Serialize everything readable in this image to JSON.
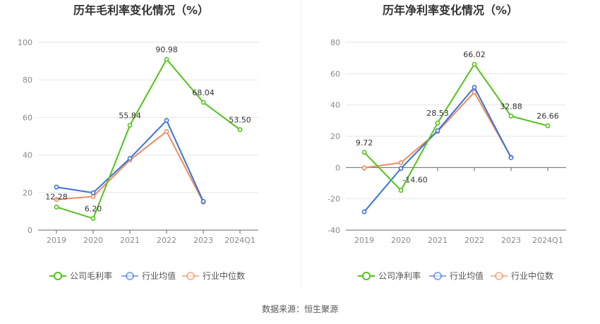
{
  "chart_data": [
    {
      "type": "line",
      "title": "历年毛利率变化情况（%）",
      "categories": [
        "2019",
        "2020",
        "2021",
        "2022",
        "2023",
        "2024Q1"
      ],
      "ylim": [
        0,
        100
      ],
      "yticks": [
        0,
        20,
        40,
        60,
        80,
        100
      ],
      "grid": true,
      "legend_position": "bottom",
      "series": [
        {
          "name": "公司毛利率",
          "color": "#52c41a",
          "values": [
            12.28,
            6.2,
            55.84,
            90.98,
            68.04,
            53.5
          ],
          "labels": [
            "12.28",
            "6.20",
            "55.84",
            "90.98",
            "68.04",
            "53.50"
          ]
        },
        {
          "name": "行业均值",
          "color": "#3b73d9",
          "values": [
            22.9,
            19.9,
            38.2,
            58.4,
            15.3,
            null
          ]
        },
        {
          "name": "行业中位数",
          "color": "#ee8a5f",
          "values": [
            16.3,
            17.9,
            37.3,
            52.5,
            14.9,
            null
          ]
        }
      ]
    },
    {
      "type": "line",
      "title": "历年净利率变化情况（%）",
      "categories": [
        "2019",
        "2020",
        "2021",
        "2022",
        "2023",
        "2024Q1"
      ],
      "ylim": [
        -40,
        80
      ],
      "yticks": [
        -40,
        -20,
        0,
        20,
        40,
        60,
        80
      ],
      "grid": true,
      "legend_position": "bottom",
      "series": [
        {
          "name": "公司净利率",
          "color": "#52c41a",
          "values": [
            9.72,
            -14.6,
            28.53,
            66.02,
            32.88,
            26.66
          ],
          "labels": [
            "9.72",
            "-14.60",
            "28.53",
            "66.02",
            "32.88",
            "26.66"
          ]
        },
        {
          "name": "行业均值",
          "color": "#3b73d9",
          "values": [
            -28.3,
            -0.6,
            23.6,
            51.3,
            6.3,
            null
          ]
        },
        {
          "name": "行业中位数",
          "color": "#ee8a5f",
          "values": [
            -0.2,
            3.1,
            23.0,
            48.1,
            6.6,
            null
          ]
        }
      ]
    }
  ],
  "source_text": "数据来源：恒生聚源"
}
